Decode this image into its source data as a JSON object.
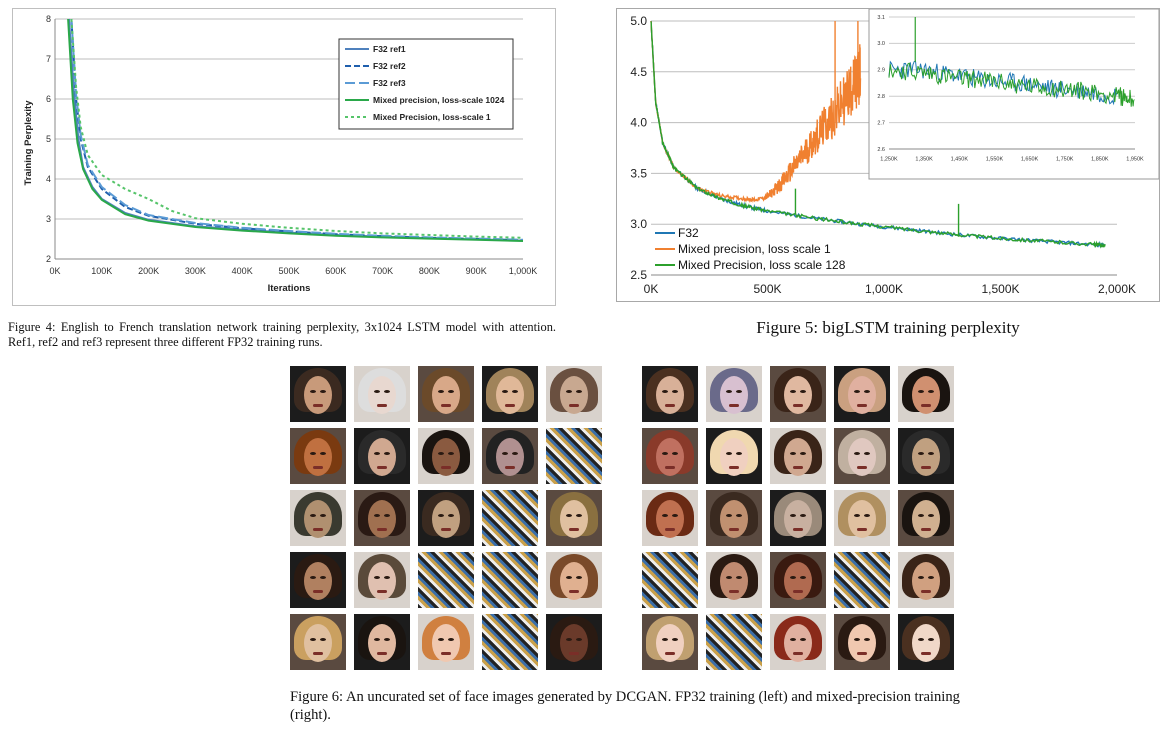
{
  "figure4": {
    "caption": "Figure 4: English to French translation network training perplexity, 3x1024 LSTM model with attention. Ref1, ref2 and ref3 represent three different FP32 training runs."
  },
  "figure5": {
    "caption": "Figure 5: bigLSTM training perplexity"
  },
  "figure6": {
    "caption": "Figure 6: An uncurated set of face images generated by DCGAN. FP32 training (left) and mixed-precision training (right)."
  },
  "chart_data": [
    {
      "type": "line",
      "xlabel": "Iterations",
      "ylabel": "Training Perplexity",
      "xlim": [
        0,
        1000000
      ],
      "ylim": [
        2,
        8
      ],
      "x_ticks": [
        "0K",
        "100K",
        "200K",
        "300K",
        "400K",
        "500K",
        "600K",
        "700K",
        "800K",
        "900K",
        "1,000K"
      ],
      "y_ticks": [
        "2",
        "3",
        "4",
        "5",
        "6",
        "7",
        "8"
      ],
      "grid": true,
      "legend_position": "top-right",
      "series": [
        {
          "name": "F32 ref1",
          "color": "#4f81bd",
          "dash": "solid",
          "x": [
            30000,
            40000,
            50000,
            60000,
            80000,
            100000,
            150000,
            200000,
            300000,
            400000,
            500000,
            600000,
            700000,
            800000,
            900000,
            1000000
          ],
          "y": [
            8,
            6.2,
            5.0,
            4.3,
            3.8,
            3.5,
            3.15,
            2.98,
            2.82,
            2.73,
            2.66,
            2.6,
            2.56,
            2.52,
            2.49,
            2.46
          ]
        },
        {
          "name": "F32 ref2",
          "color": "#1f5fad",
          "dash": "6,3",
          "x": [
            35000,
            45000,
            55000,
            70000,
            100000,
            150000,
            200000,
            300000,
            400000,
            500000,
            600000,
            700000,
            800000,
            900000,
            1000000
          ],
          "y": [
            8,
            6.0,
            5.0,
            4.3,
            3.75,
            3.3,
            3.08,
            2.88,
            2.77,
            2.69,
            2.62,
            2.57,
            2.53,
            2.5,
            2.47
          ]
        },
        {
          "name": "F32 ref3",
          "color": "#5b9bd5",
          "dash": "10,4",
          "x": [
            35000,
            45000,
            55000,
            70000,
            100000,
            150000,
            200000,
            300000,
            400000,
            500000,
            600000,
            700000,
            800000,
            900000,
            1000000
          ],
          "y": [
            8,
            6.1,
            5.1,
            4.35,
            3.8,
            3.35,
            3.1,
            2.9,
            2.78,
            2.7,
            2.63,
            2.58,
            2.54,
            2.51,
            2.48
          ]
        },
        {
          "name": "Mixed precision, loss-scale 1024",
          "color": "#2aa84a",
          "dash": "solid",
          "x": [
            28000,
            38000,
            48000,
            60000,
            80000,
            100000,
            150000,
            200000,
            300000,
            400000,
            500000,
            600000,
            700000,
            800000,
            900000,
            1000000
          ],
          "y": [
            8,
            6.0,
            4.9,
            4.25,
            3.75,
            3.48,
            3.12,
            2.96,
            2.8,
            2.71,
            2.64,
            2.58,
            2.54,
            2.51,
            2.48,
            2.45
          ]
        },
        {
          "name": "Mixed Precision, loss-scale 1",
          "color": "#56c46a",
          "dash": "3,3",
          "x": [
            35000,
            45000,
            55000,
            70000,
            100000,
            150000,
            200000,
            250000,
            300000,
            400000,
            500000,
            600000,
            700000,
            800000,
            900000,
            1000000
          ],
          "y": [
            8,
            6.3,
            5.3,
            4.6,
            4.1,
            3.75,
            3.5,
            3.2,
            3.02,
            2.88,
            2.78,
            2.7,
            2.64,
            2.6,
            2.56,
            2.53
          ]
        }
      ]
    },
    {
      "type": "line",
      "xlim": [
        0,
        2000000
      ],
      "ylim": [
        2.5,
        5.0
      ],
      "x_ticks": [
        "0K",
        "500K",
        "1,000K",
        "1,500K",
        "2,000K"
      ],
      "y_ticks": [
        "2.5",
        "3.0",
        "3.5",
        "4.0",
        "4.5",
        "5.0"
      ],
      "grid": true,
      "legend_position": "bottom-left",
      "series": [
        {
          "name": "F32",
          "color": "#1f77b4",
          "x": [
            0,
            20000,
            50000,
            100000,
            200000,
            300000,
            400000,
            500000,
            700000,
            900000,
            1100000,
            1300000,
            1500000,
            1700000,
            1900000,
            1950000
          ],
          "y": [
            5.0,
            4.2,
            3.8,
            3.55,
            3.35,
            3.25,
            3.18,
            3.13,
            3.06,
            3.0,
            2.95,
            2.9,
            2.86,
            2.83,
            2.8,
            2.79
          ]
        },
        {
          "name": "Mixed precision, loss scale 1",
          "color": "#f08030",
          "x": [
            0,
            20000,
            50000,
            100000,
            200000,
            300000,
            400000,
            450000,
            500000,
            550000,
            600000,
            650000,
            700000,
            750000,
            800000,
            850000,
            880000,
            900000
          ],
          "y": [
            5.0,
            4.2,
            3.8,
            3.55,
            3.35,
            3.28,
            3.25,
            3.24,
            3.27,
            3.38,
            3.52,
            3.67,
            3.83,
            3.98,
            4.12,
            4.3,
            4.4,
            4.5
          ]
        },
        {
          "name": "Mixed Precision, loss scale 128",
          "color": "#2ca02c",
          "x": [
            0,
            20000,
            50000,
            100000,
            200000,
            300000,
            400000,
            500000,
            700000,
            900000,
            1100000,
            1300000,
            1500000,
            1700000,
            1900000,
            1950000
          ],
          "y": [
            5.0,
            4.2,
            3.8,
            3.55,
            3.35,
            3.25,
            3.18,
            3.13,
            3.06,
            3.0,
            2.95,
            2.9,
            2.86,
            2.83,
            2.8,
            2.79
          ]
        }
      ]
    },
    {
      "type": "line",
      "xlim": [
        1250000,
        2000000
      ],
      "ylim": [
        2.6,
        3.1
      ],
      "x_ticks": [
        "1,250K",
        "1,350K",
        "1,450K",
        "1,550K",
        "1,650K",
        "1,750K",
        "1,850K",
        "1,950K"
      ],
      "y_ticks": [
        "2.6",
        "2.7",
        "2.8",
        "2.9",
        "3.0",
        "3.1"
      ],
      "grid": true,
      "series": [
        {
          "name": "F32",
          "color": "#1f77b4",
          "x": [
            1250000,
            1350000,
            1450000,
            1550000,
            1650000,
            1750000,
            1850000,
            1950000
          ],
          "y": [
            2.9,
            2.9,
            2.88,
            2.86,
            2.85,
            2.83,
            2.82,
            2.8
          ]
        },
        {
          "name": "Mixed Precision, loss scale 128",
          "color": "#2ca02c",
          "x": [
            1250000,
            1350000,
            1450000,
            1550000,
            1650000,
            1750000,
            1850000,
            1950000,
            2000000
          ],
          "y": [
            2.9,
            2.89,
            2.87,
            2.86,
            2.84,
            2.83,
            2.82,
            2.8,
            2.79
          ]
        }
      ]
    }
  ]
}
